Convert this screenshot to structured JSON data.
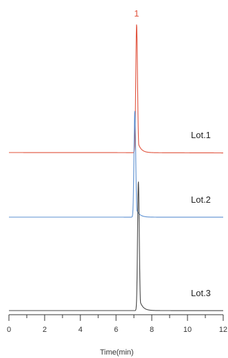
{
  "chart_data": {
    "type": "line",
    "title": "",
    "xlabel": "Time(min)",
    "ylabel": "",
    "xlim": [
      0,
      12
    ],
    "x_ticks": [
      0,
      2,
      4,
      6,
      8,
      10,
      12
    ],
    "x_tick_labels": [
      "0",
      "2",
      "4",
      "6",
      "8",
      "10",
      "12"
    ],
    "x_minor_ticks": [
      1,
      3,
      5,
      7,
      9,
      11
    ],
    "grid": false,
    "legend": "none",
    "annotations": [
      {
        "text": "1",
        "x": 7.15,
        "color": "#e0503a"
      }
    ],
    "series": [
      {
        "name": "Lot.1",
        "color": "#e0503a",
        "baseline_x": [
          0,
          2,
          4,
          6,
          6.9,
          12
        ],
        "baseline_y": [
          0,
          -0.005,
          -0.01,
          -0.015,
          -0.02,
          -0.07
        ],
        "peak_time": 7.15,
        "peak_height": 1.0
      },
      {
        "name": "Lot.2",
        "color": "#5b8fd0",
        "baseline_x": [
          0,
          2,
          4,
          6,
          6.9,
          12
        ],
        "baseline_y": [
          0,
          0,
          0,
          0,
          -0.005,
          -0.01
        ],
        "peak_time": 7.05,
        "peak_height": 0.98
      },
      {
        "name": "Lot.3",
        "color": "#444444",
        "baseline_x": [
          0,
          2,
          4,
          6,
          6.9,
          12
        ],
        "baseline_y": [
          0,
          0,
          0,
          0,
          0,
          -0.005
        ],
        "peak_time": 7.25,
        "peak_height": 1.0
      }
    ]
  }
}
